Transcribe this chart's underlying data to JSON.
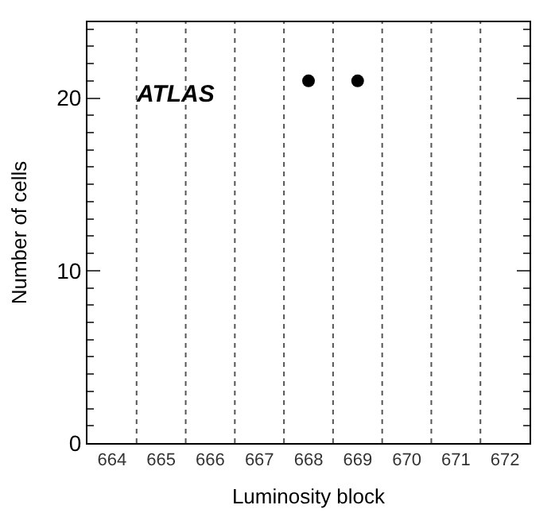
{
  "chart_data": {
    "type": "scatter",
    "categories": [
      "664",
      "665",
      "666",
      "667",
      "668",
      "669",
      "670",
      "671",
      "672"
    ],
    "series": [
      {
        "color": "#000000",
        "values": [
          null,
          null,
          null,
          null,
          21,
          21,
          null,
          null,
          null
        ]
      }
    ],
    "xlabel": "Luminosity block",
    "ylabel": "Number of cells",
    "ylim": [
      0,
      24.4
    ],
    "yticks": [
      0,
      10,
      20
    ],
    "grid": "x",
    "marker": "circle",
    "annotations": [
      "ATLAS"
    ]
  }
}
